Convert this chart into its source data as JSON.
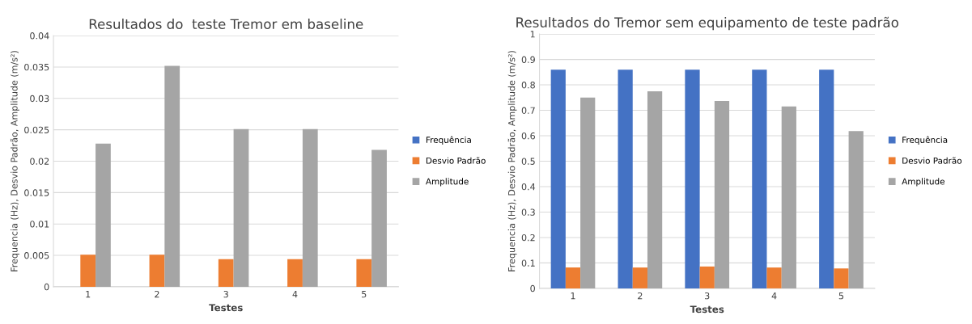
{
  "chart_data": [
    {
      "type": "bar",
      "title": "Resultados do  teste Tremor em baseline",
      "xlabel": "Testes",
      "ylabel": "Frequencia (Hz), Desvio Padrão, Amplitude (m/s²)",
      "categories": [
        "1",
        "2",
        "3",
        "4",
        "5"
      ],
      "series": [
        {
          "name": "Frequência",
          "color": "#4472c4",
          "values": [
            null,
            null,
            null,
            null,
            null
          ]
        },
        {
          "name": "Desvio Padrão",
          "color": "#ed7d31",
          "values": [
            0.0051,
            0.0051,
            0.0044,
            0.0044,
            0.0044
          ]
        },
        {
          "name": "Amplitude",
          "color": "#a5a5a5",
          "values": [
            0.0228,
            0.0352,
            0.0251,
            0.0251,
            0.0218
          ]
        }
      ],
      "ylim": [
        0,
        0.04
      ],
      "yticks": [
        0,
        0.005,
        0.01,
        0.015,
        0.02,
        0.025,
        0.03,
        0.035,
        0.04
      ],
      "grid": "y",
      "legend": "right"
    },
    {
      "type": "bar",
      "title": "Resultados do Tremor sem equipamento de teste padrão",
      "xlabel": "Testes",
      "ylabel": "Frequencia (Hz), Desvio Padrão, Amplitude (m/s²)",
      "categories": [
        "1",
        "2",
        "3",
        "4",
        "5"
      ],
      "series": [
        {
          "name": "Frequência",
          "color": "#4472c4",
          "values": [
            0.86,
            0.86,
            0.86,
            0.86,
            0.86
          ]
        },
        {
          "name": "Desvio Padrão",
          "color": "#ed7d31",
          "values": [
            0.082,
            0.082,
            0.086,
            0.082,
            0.078
          ]
        },
        {
          "name": "Amplitude",
          "color": "#a5a5a5",
          "values": [
            0.75,
            0.775,
            0.737,
            0.715,
            0.618
          ]
        }
      ],
      "ylim": [
        0,
        1
      ],
      "yticks": [
        0,
        0.1,
        0.2,
        0.3,
        0.4,
        0.5,
        0.6,
        0.7,
        0.8,
        0.9,
        1
      ],
      "grid": "y",
      "legend": "right"
    }
  ]
}
